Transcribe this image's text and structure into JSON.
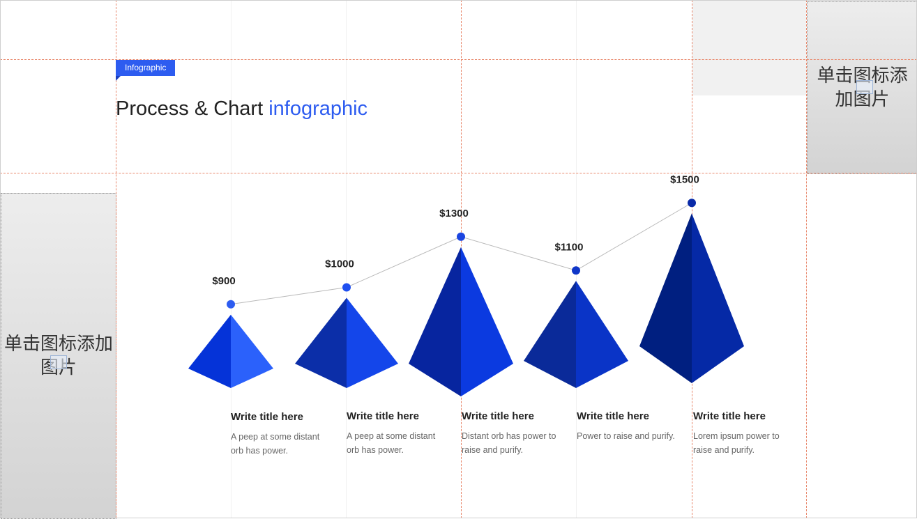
{
  "header": {
    "tag": "Infographic",
    "title_main": "Process & Chart ",
    "title_accent": "infographic"
  },
  "placeholders": {
    "left": "单击图标添加图片",
    "right": "单击图标添加图片"
  },
  "chart_data": {
    "type": "line",
    "categories": [
      "Write title here",
      "Write title here",
      "Write title here",
      "Write title here",
      "Write title here"
    ],
    "series": [
      {
        "values": [
          900,
          1000,
          1300,
          1100,
          1500
        ],
        "labels": [
          "$900",
          "$1000",
          "$1300",
          "$1100",
          "$1500"
        ]
      }
    ],
    "ylim": [
      0,
      1600
    ],
    "grid": false,
    "colors": {
      "line": "#b9b9b9",
      "points": [
        "#2d5cf0",
        "#1f4ff0",
        "#1b45e0",
        "#0f36c8",
        "#0a2aa8"
      ],
      "pyramids": [
        [
          "#0533d8",
          "#2b61fb"
        ],
        [
          "#0b2ea8",
          "#1446ea"
        ],
        [
          "#07259f",
          "#0b3ae0"
        ],
        [
          "#0a2a99",
          "#0a34c7"
        ],
        [
          "#001f80",
          "#0529a6"
        ]
      ]
    }
  },
  "items": [
    {
      "title": "Write title here",
      "desc": "A peep at some distant orb has power."
    },
    {
      "title": "Write title here",
      "desc": "A peep at some distant orb has power."
    },
    {
      "title": "Write title here",
      "desc": "Distant orb has power to raise and purify."
    },
    {
      "title": "Write title here",
      "desc": "Power to raise and purify."
    },
    {
      "title": "Write title here",
      "desc": "Lorem ipsum power to raise and purify."
    }
  ]
}
